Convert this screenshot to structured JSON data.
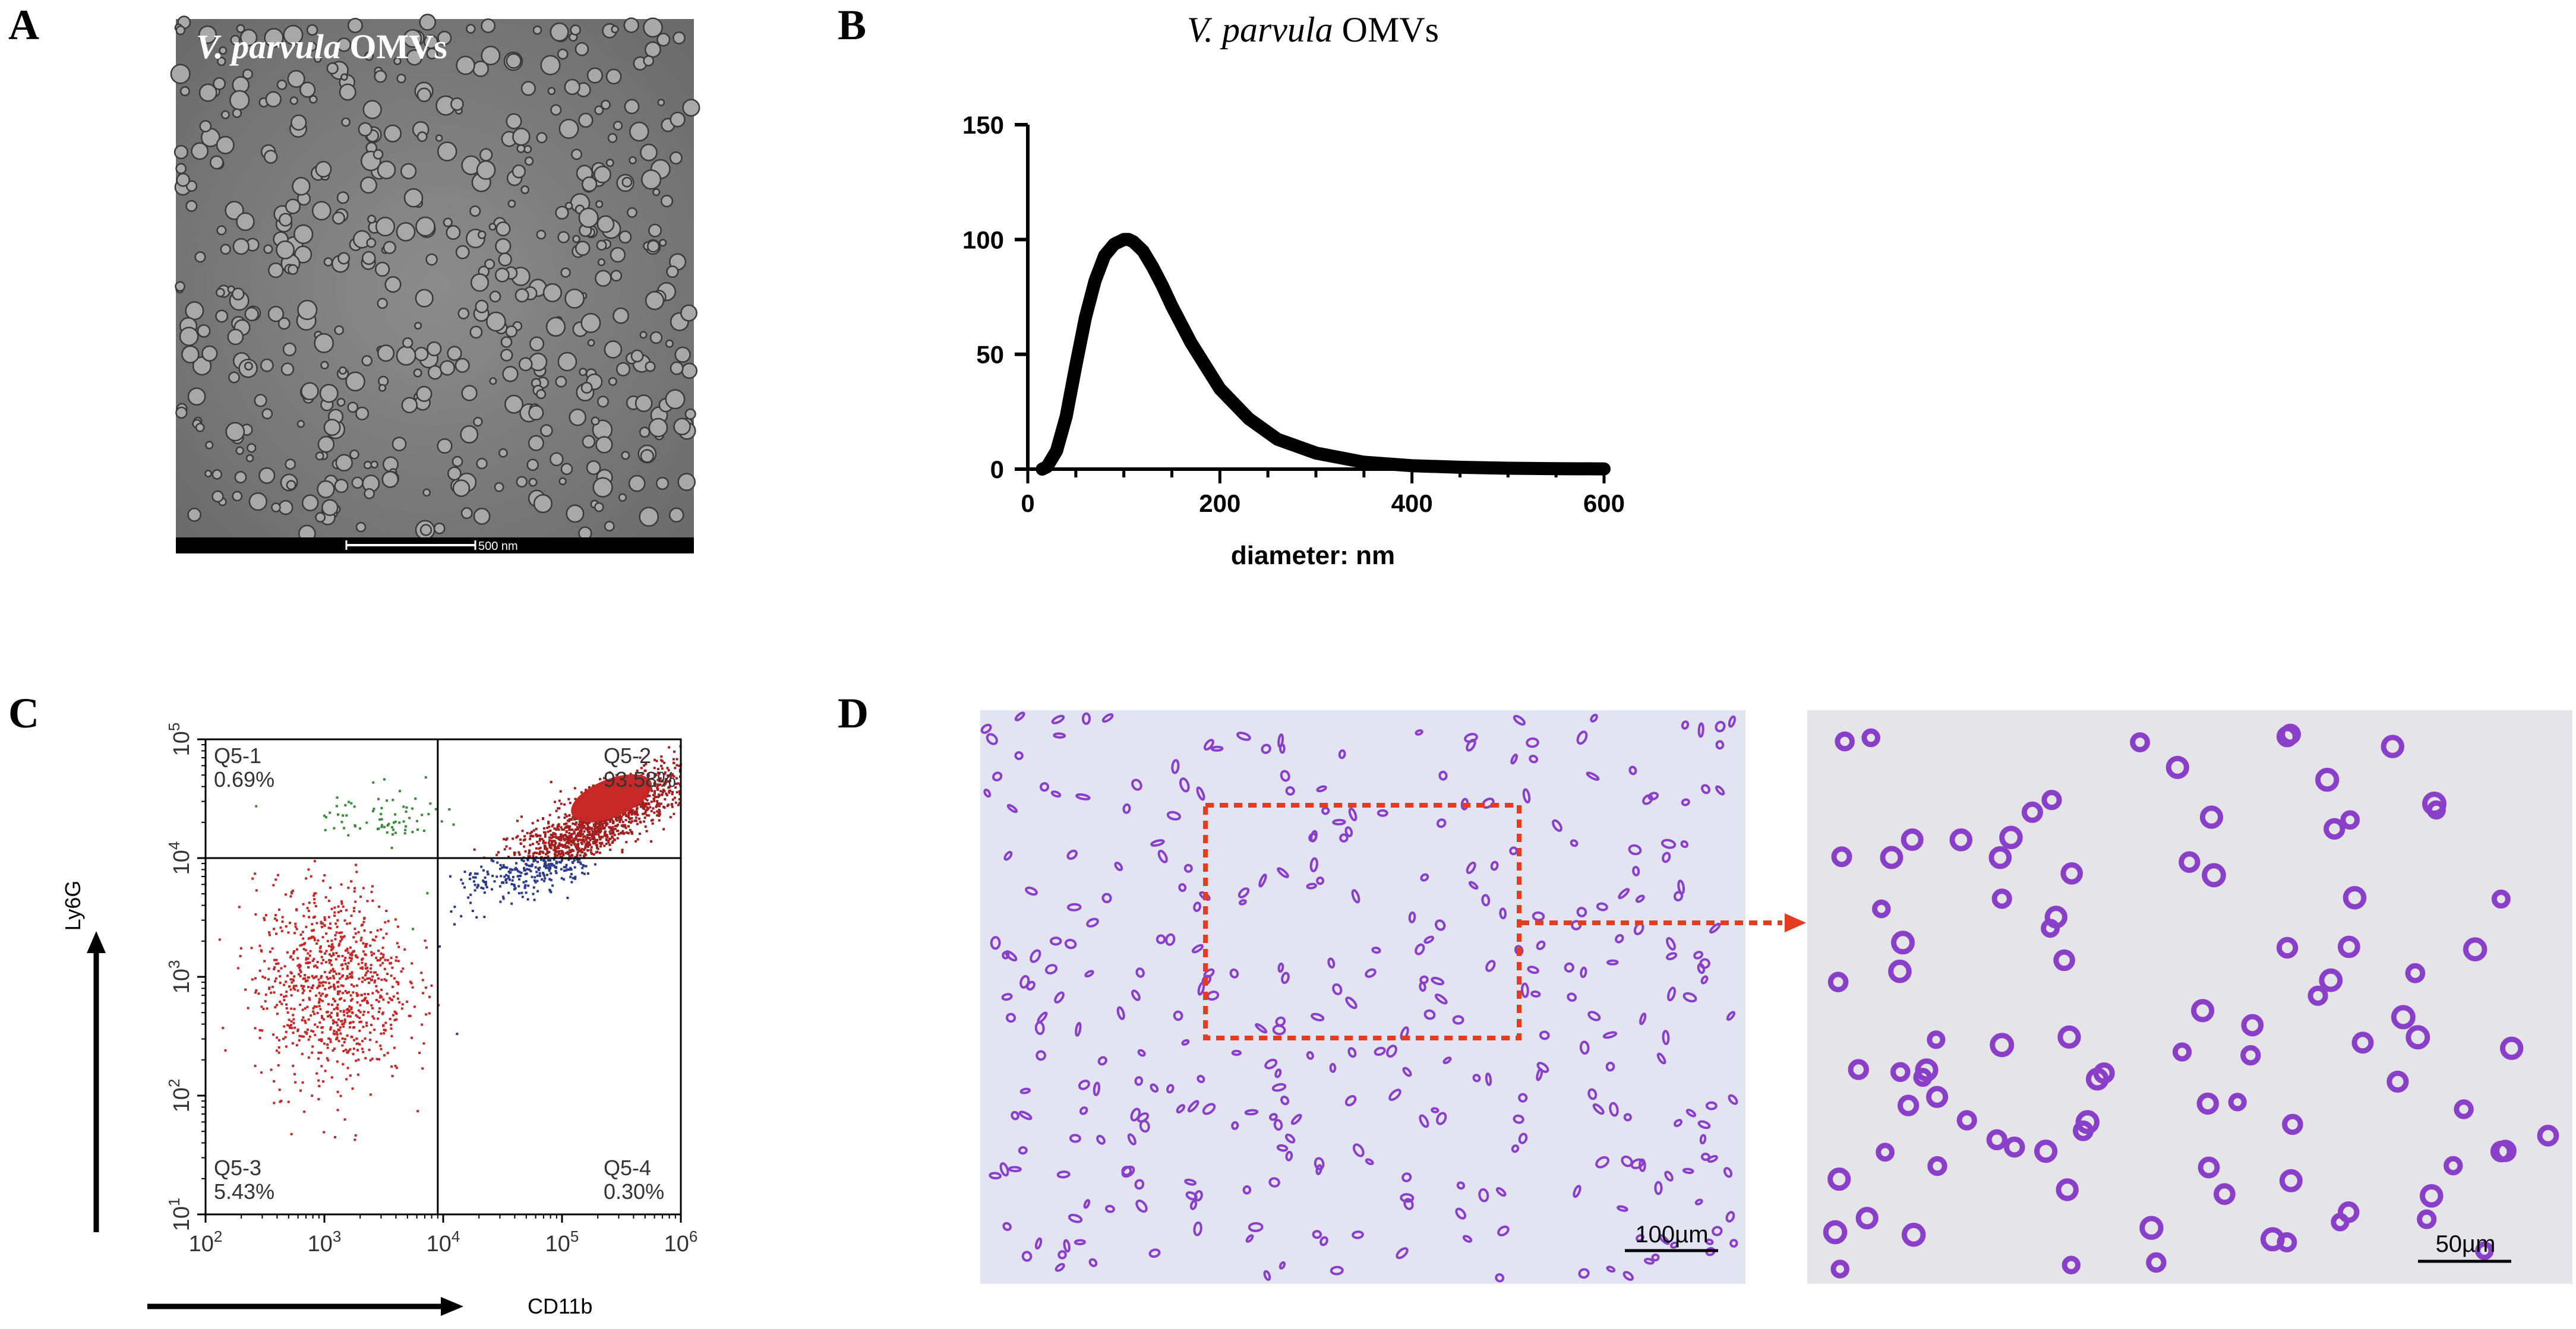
{
  "panels": {
    "a": {
      "letter": "A",
      "overlay_title_italic": "V. parvula",
      "overlay_title_rest": " OMVs",
      "scale_bar_label": "500 nm"
    },
    "b": {
      "letter": "B"
    },
    "c": {
      "letter": "C"
    },
    "d": {
      "letter": "D",
      "left_scale_label": "100µm",
      "right_scale_label": "50µm"
    }
  },
  "colors": {
    "flow_red": "#c62828",
    "flow_dark_red": "#a31f1f",
    "flow_green": "#3a8a3a",
    "flow_blue": "#2c3a8c",
    "stain_purple": "#8a3fc9",
    "zoom_box": "#e53b1f"
  },
  "chart_data": [
    {
      "type": "line",
      "title_italic": "V. parvula",
      "title_rest": " OMVs",
      "title": "V. parvula OMVs",
      "xlabel": "diameter: nm",
      "ylabel": "",
      "xlim": [
        0,
        600
      ],
      "ylim": [
        0,
        150
      ],
      "x_ticks": [
        0,
        200,
        400,
        600
      ],
      "y_ticks": [
        0,
        50,
        100,
        150
      ],
      "x": [
        15,
        20,
        30,
        40,
        50,
        60,
        70,
        80,
        90,
        100,
        105,
        110,
        120,
        130,
        140,
        150,
        170,
        200,
        230,
        260,
        300,
        350,
        400,
        450,
        500,
        550,
        600
      ],
      "values": [
        0,
        1,
        8,
        23,
        45,
        66,
        82,
        93,
        98,
        100,
        100,
        99,
        95,
        88,
        80,
        71,
        55,
        35,
        22,
        13,
        7,
        3,
        1.5,
        0.8,
        0.4,
        0.2,
        0.1
      ],
      "grid": false
    },
    {
      "type": "scatter",
      "xlabel": "CD11b",
      "ylabel": "Ly6G",
      "x_scale": "log",
      "y_scale": "log",
      "xlim": [
        100,
        1000000
      ],
      "ylim": [
        10,
        100000
      ],
      "x_gate": 9000,
      "y_gate": 10000,
      "x_tick_labels": [
        "10^2",
        "10^3",
        "10^4",
        "10^5",
        "10^6"
      ],
      "y_tick_labels": [
        "10^1",
        "10^2",
        "10^3",
        "10^4",
        "10^5"
      ],
      "quadrants": [
        {
          "name": "Q5-1",
          "value": "0.69%",
          "position": "top-left"
        },
        {
          "name": "Q5-2",
          "value": "93.58%",
          "position": "top-right"
        },
        {
          "name": "Q5-3",
          "value": "5.43%",
          "position": "bottom-left"
        },
        {
          "name": "Q5-4",
          "value": "0.30%",
          "position": "bottom-right"
        }
      ]
    }
  ]
}
